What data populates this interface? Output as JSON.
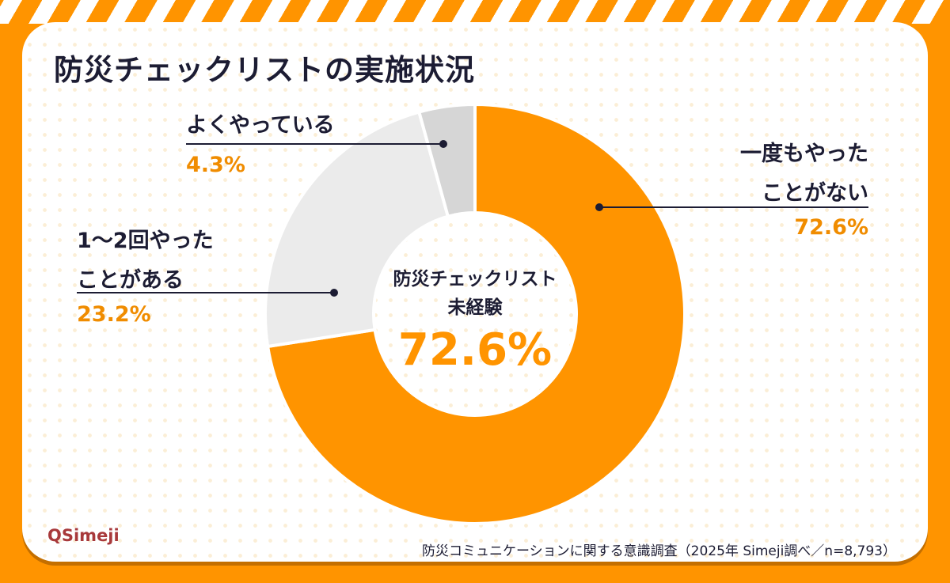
{
  "title": "防災チェックリストの実施状況",
  "chart_data": {
    "type": "pie",
    "title": "防災チェックリストの実施状況",
    "donut": true,
    "categories": [
      "一度もやったことがない",
      "1〜2回やったことがある",
      "よくやっている"
    ],
    "values": [
      72.6,
      23.2,
      4.3
    ],
    "labels": [
      "72.6%",
      "23.2%",
      "4.3%"
    ],
    "colors": [
      "#ff9400",
      "#ebebeb",
      "#d6d6d6"
    ],
    "center_label": {
      "line1": "防災チェックリスト",
      "line2": "未経験",
      "value": "72.6%"
    }
  },
  "labels": {
    "never": {
      "l1": "一度もやった",
      "l2": "ことがない",
      "pct": "72.6%"
    },
    "once": {
      "l1": "1〜2回やった",
      "l2": "ことがある",
      "pct": "23.2%"
    },
    "often": {
      "l1": "よくやっている",
      "pct": "4.3%"
    }
  },
  "logo": "Simeji",
  "footer": "防災コミュニケーションに関する意識調査（2025年 Simeji調べ／n=8,793）"
}
